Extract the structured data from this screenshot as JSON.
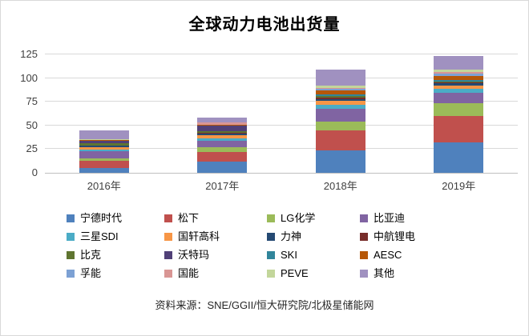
{
  "chart_data": {
    "type": "bar",
    "stacked": true,
    "title": "全球动力电池出货量",
    "categories": [
      "2016年",
      "2017年",
      "2018年",
      "2019年"
    ],
    "yticks": [
      0,
      25,
      50,
      75,
      100,
      125
    ],
    "ylim": [
      0,
      125
    ],
    "grid": true,
    "legend_position": "bottom",
    "series": [
      {
        "name": "宁德时代",
        "color": "#4F81BD",
        "values": [
          5.5,
          11.8,
          23.5,
          32
        ]
      },
      {
        "name": "松下",
        "color": "#C0504D",
        "values": [
          7,
          10.4,
          21,
          28
        ]
      },
      {
        "name": "LG化学",
        "color": "#9BBB59",
        "values": [
          2.5,
          4.8,
          10,
          13.5
        ]
      },
      {
        "name": "比亚迪",
        "color": "#8064A2",
        "values": [
          8,
          6.5,
          13,
          11
        ]
      },
      {
        "name": "三星SDI",
        "color": "#4BACC6",
        "values": [
          1.6,
          2.8,
          4,
          4.5
        ]
      },
      {
        "name": "国轩高科",
        "color": "#F79646",
        "values": [
          2.8,
          3.7,
          4.3,
          3.4
        ]
      },
      {
        "name": "力神",
        "color": "#254A73",
        "values": [
          1.2,
          1.8,
          2,
          2
        ]
      },
      {
        "name": "中航锂电",
        "color": "#772C2A",
        "values": [
          0.5,
          0.5,
          1.4,
          1.3
        ]
      },
      {
        "name": "比克",
        "color": "#5F7530",
        "values": [
          1.8,
          1.9,
          1.7,
          0.3
        ]
      },
      {
        "name": "沃特玛",
        "color": "#504077",
        "values": [
          2.8,
          5.5,
          0.3,
          0
        ]
      },
      {
        "name": "SKI",
        "color": "#31859B",
        "values": [
          0.2,
          0.3,
          2,
          2.3
        ]
      },
      {
        "name": "AESC",
        "color": "#B65708",
        "values": [
          0.4,
          0.5,
          4.3,
          4
        ]
      },
      {
        "name": "孚能",
        "color": "#7DA1D4",
        "values": [
          0.2,
          0.3,
          1.7,
          2.3
        ]
      },
      {
        "name": "国能",
        "color": "#D99694",
        "values": [
          0.4,
          2.3,
          0.8,
          1.8
        ]
      },
      {
        "name": "PEVE",
        "color": "#C3D69B",
        "values": [
          0.6,
          0.2,
          2.5,
          2.8
        ]
      },
      {
        "name": "其他",
        "color": "#A091C0",
        "values": [
          9.5,
          5.0,
          16.5,
          14
        ]
      }
    ],
    "axis_color": "#BFBFBF",
    "gridline_color": "#D9D9D9"
  },
  "source": "资料来源：SNE/GGII/恒大研究院/北极星储能网"
}
